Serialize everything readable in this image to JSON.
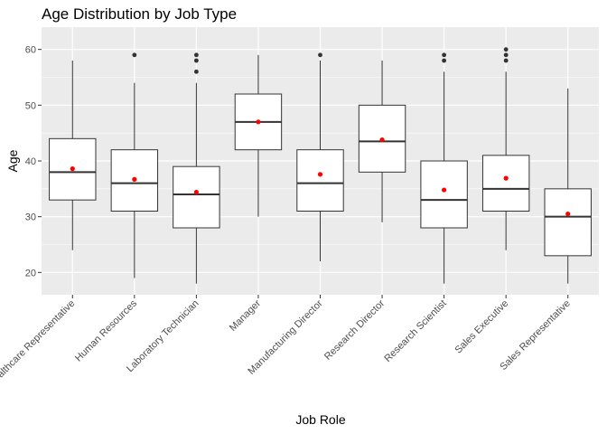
{
  "chart_data": {
    "type": "boxplot",
    "title": "Age Distribution by Job Type",
    "xlabel": "Job Role",
    "ylabel": "Age",
    "ylim": [
      16,
      64
    ],
    "yticks": [
      20,
      30,
      40,
      50,
      60
    ],
    "grid": true,
    "legend": "none",
    "categories": [
      "Healthcare Representative",
      "Human Resources",
      "Laboratory Technician",
      "Manager",
      "Manufacturing Director",
      "Research Director",
      "Research Scientist",
      "Sales Executive",
      "Sales Representative"
    ],
    "boxes": [
      {
        "lower_whisker": 24,
        "q1": 33,
        "median": 38,
        "q3": 44,
        "upper_whisker": 58,
        "mean": 38.6,
        "outliers": []
      },
      {
        "lower_whisker": 19,
        "q1": 31,
        "median": 36,
        "q3": 42,
        "upper_whisker": 54,
        "mean": 36.7,
        "outliers": [
          59
        ]
      },
      {
        "lower_whisker": 18,
        "q1": 28,
        "median": 34,
        "q3": 39,
        "upper_whisker": 54,
        "mean": 34.4,
        "outliers": [
          56,
          58,
          59
        ]
      },
      {
        "lower_whisker": 30,
        "q1": 42,
        "median": 47,
        "q3": 52,
        "upper_whisker": 59,
        "mean": 47.0,
        "outliers": []
      },
      {
        "lower_whisker": 22,
        "q1": 31,
        "median": 36,
        "q3": 42,
        "upper_whisker": 58,
        "mean": 37.6,
        "outliers": [
          59
        ]
      },
      {
        "lower_whisker": 29,
        "q1": 38,
        "median": 43.5,
        "q3": 50,
        "upper_whisker": 58,
        "mean": 43.8,
        "outliers": []
      },
      {
        "lower_whisker": 18,
        "q1": 28,
        "median": 33,
        "q3": 40,
        "upper_whisker": 56,
        "mean": 34.8,
        "outliers": [
          58,
          59
        ]
      },
      {
        "lower_whisker": 24,
        "q1": 31,
        "median": 35,
        "q3": 41,
        "upper_whisker": 56,
        "mean": 36.9,
        "outliers": [
          58,
          59,
          60
        ]
      },
      {
        "lower_whisker": 18,
        "q1": 23,
        "median": 30,
        "q3": 35,
        "upper_whisker": 53,
        "mean": 30.5,
        "outliers": []
      }
    ],
    "colors": {
      "panel_background": "#ebebeb",
      "grid": "#ffffff",
      "box_fill": "#ffffff",
      "box_stroke": "#333333",
      "outlier": "#333333",
      "mean_point": "#ff0000"
    }
  }
}
